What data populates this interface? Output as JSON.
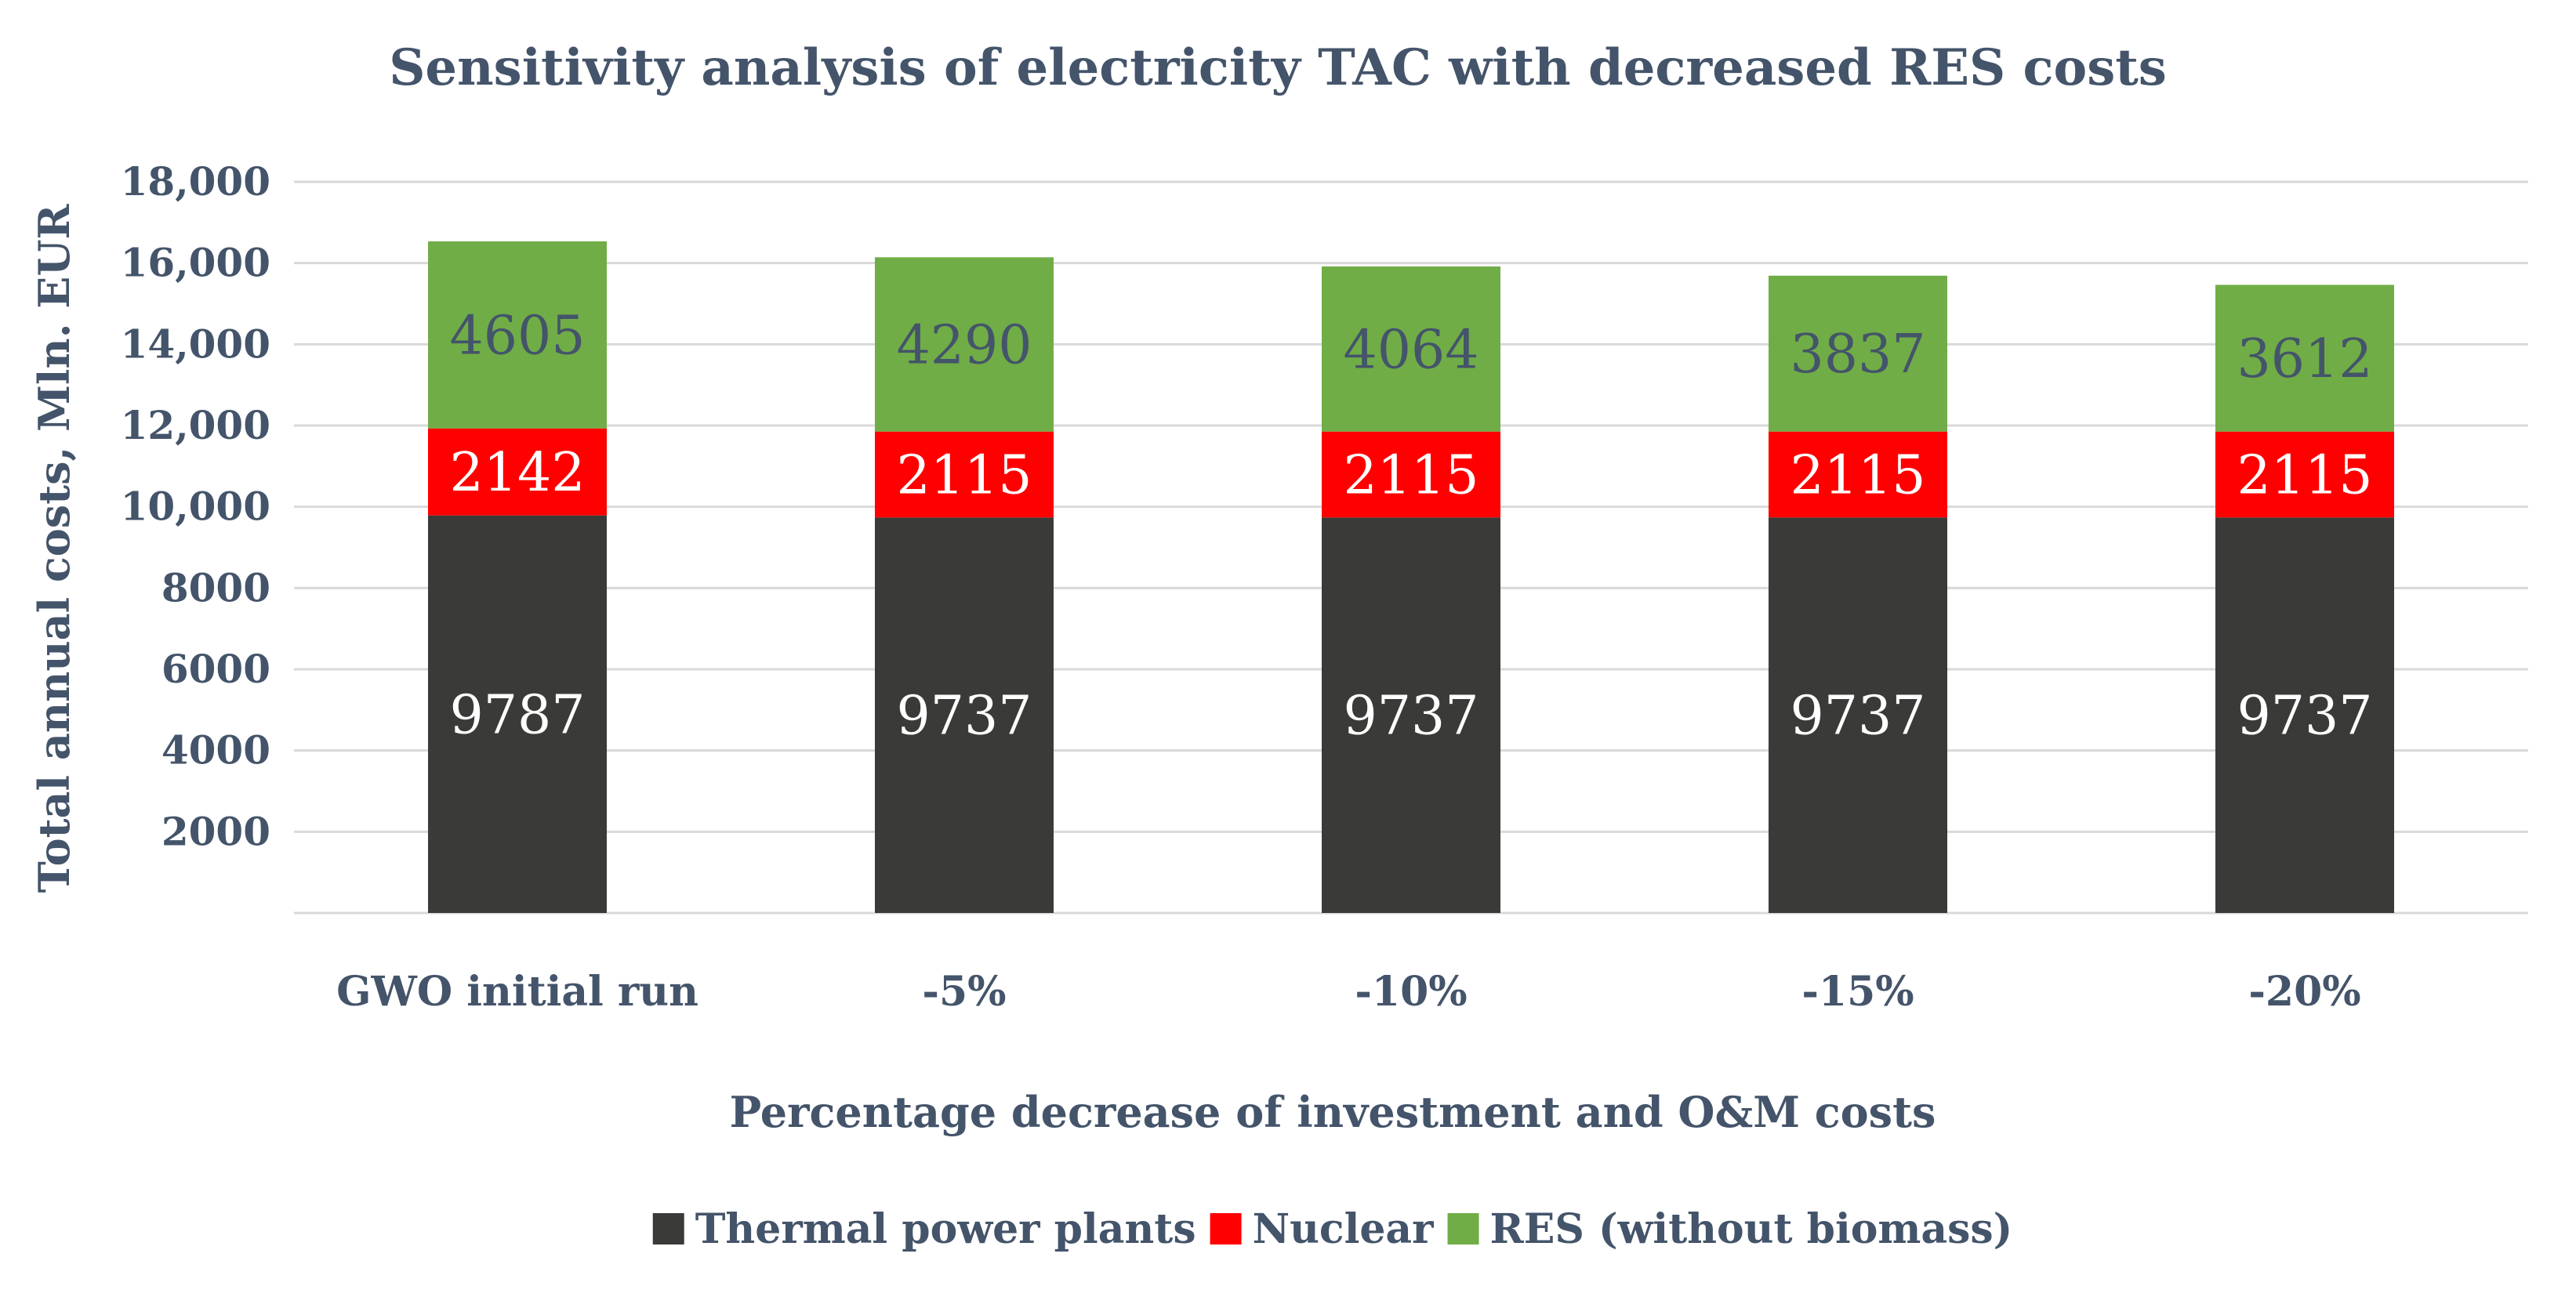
{
  "chart_data": {
    "type": "bar",
    "stacked": true,
    "title": "Sensitivity analysis of electricity TAC with decreased RES costs",
    "xlabel": "Percentage decrease of investment and O&M costs",
    "ylabel": "Total annual costs, Mln. EUR",
    "ylim": [
      0,
      18000
    ],
    "yticks": [
      2000,
      4000,
      6000,
      8000,
      10000,
      12000,
      14000,
      16000,
      18000
    ],
    "ytick_labels": [
      "2000",
      "4000",
      "6000",
      "8000",
      "10,000",
      "12,000",
      "14,000",
      "16,000",
      "18,000"
    ],
    "categories": [
      "GWO initial run",
      "-5%",
      "-10%",
      "-15%",
      "-20%"
    ],
    "series": [
      {
        "name": "Thermal power plants",
        "values": [
          9787,
          9737,
          9737,
          9737,
          9737
        ],
        "color": "#3a3a38",
        "label_color": "#ffffff"
      },
      {
        "name": "Nuclear",
        "values": [
          2142,
          2115,
          2115,
          2115,
          2115
        ],
        "color": "#ff0000",
        "label_color": "#ffffff"
      },
      {
        "name": "RES (without biomass)",
        "values": [
          4605,
          4290,
          4064,
          3837,
          3612
        ],
        "color": "#70ad47",
        "label_color": "#44546a"
      }
    ],
    "grid": true,
    "legend_position": "bottom"
  }
}
